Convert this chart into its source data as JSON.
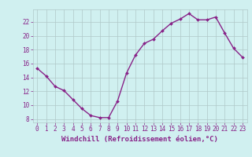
{
  "x": [
    0,
    1,
    2,
    3,
    4,
    5,
    6,
    7,
    8,
    9,
    10,
    11,
    12,
    13,
    14,
    15,
    16,
    17,
    18,
    19,
    20,
    21,
    22,
    23
  ],
  "y": [
    15.3,
    14.2,
    12.7,
    12.1,
    10.8,
    9.5,
    8.5,
    8.2,
    8.2,
    10.6,
    14.6,
    17.2,
    18.9,
    19.5,
    20.7,
    21.8,
    22.4,
    23.2,
    22.3,
    22.3,
    22.7,
    20.4,
    18.2,
    16.9
  ],
  "line_color": "#882288",
  "marker": "D",
  "marker_size": 2.0,
  "bg_color": "#d0f0f0",
  "grid_color": "#b0c8c8",
  "xlabel": "Windchill (Refroidissement éolien,°C)",
  "xlabel_color": "#882288",
  "tick_color": "#882288",
  "ylim": [
    7.5,
    23.8
  ],
  "xlim": [
    -0.5,
    23.5
  ],
  "yticks": [
    8,
    10,
    12,
    14,
    16,
    18,
    20,
    22
  ],
  "xticks": [
    0,
    1,
    2,
    3,
    4,
    5,
    6,
    7,
    8,
    9,
    10,
    11,
    12,
    13,
    14,
    15,
    16,
    17,
    18,
    19,
    20,
    21,
    22,
    23
  ],
  "line_width": 1.0,
  "tick_fontsize": 5.5,
  "xlabel_fontsize": 6.5
}
